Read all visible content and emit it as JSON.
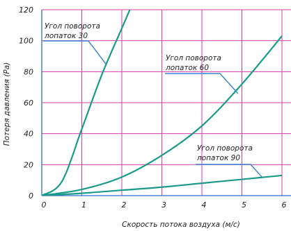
{
  "chart_data": {
    "type": "line",
    "title": "",
    "xlabel": "Скорость потока воздуха (м/с)",
    "ylabel": "Потеря давления (Pa)",
    "xlim": [
      0,
      6
    ],
    "ylim": [
      0,
      120
    ],
    "x_ticks": [
      "0",
      "1",
      "2",
      "3",
      "4",
      "5",
      "6"
    ],
    "y_ticks": [
      "0",
      "20",
      "40",
      "60",
      "80",
      "100",
      "120"
    ],
    "grid": true,
    "colors": {
      "series": "#1a9a8a",
      "grid": "#d63fa0",
      "axes": "#2d6fbf",
      "annotation": "#3a7fd0"
    },
    "series": [
      {
        "name": "Угол поворота лопаток 30",
        "x": [
          0,
          0.5,
          1,
          1.5,
          2,
          2.2
        ],
        "y": [
          0,
          9,
          43,
          78,
          108,
          120
        ],
        "annotation": {
          "lines": [
            "Угол поворота",
            "лопаток 30"
          ],
          "point": [
            1.6,
            85
          ]
        }
      },
      {
        "name": "Угол поворота лопаток 60",
        "x": [
          0,
          1,
          2,
          3,
          4,
          5,
          6
        ],
        "y": [
          0,
          4,
          12,
          26,
          45,
          72,
          103
        ],
        "annotation": {
          "lines": [
            "Угол поворота",
            "лопаток 60"
          ],
          "point": [
            4.9,
            66
          ]
        }
      },
      {
        "name": "Угол поворота лопаток 90",
        "x": [
          0,
          1,
          2,
          3,
          4,
          5,
          6
        ],
        "y": [
          0,
          1.5,
          3.5,
          5.5,
          8,
          10.5,
          13
        ],
        "annotation": {
          "lines": [
            "Угол поворота",
            "лопаток 90"
          ],
          "point": [
            5.5,
            12
          ]
        }
      }
    ]
  }
}
